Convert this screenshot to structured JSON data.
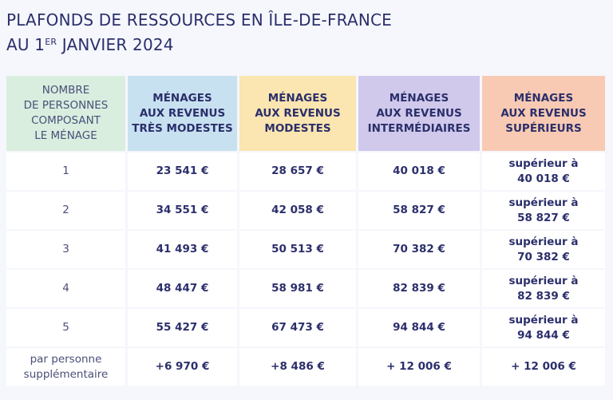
{
  "title": {
    "line1": "PLAFONDS DE RESSOURCES EN ÎLE-DE-FRANCE",
    "line2": {
      "prefix": "AU 1",
      "sup": "ER",
      "suffix": " JANVIER 2024"
    }
  },
  "table": {
    "header": [
      [
        "NOMBRE",
        "DE PERSONNES",
        "COMPOSANT",
        "LE MÉNAGE"
      ],
      [
        "MÉNAGES",
        "AUX REVENUS",
        "TRÈS MODESTES"
      ],
      [
        "MÉNAGES",
        "AUX REVENUS",
        "MODESTES"
      ],
      [
        "MÉNAGES",
        "AUX REVENUS",
        "INTERMÉDIAIRES"
      ],
      [
        "MÉNAGES",
        "AUX REVENUS",
        "SUPÉRIEURS"
      ]
    ],
    "rows": [
      [
        "1",
        "23 541 €",
        "28 657 €",
        "40 018 €",
        [
          "supérieur à",
          "40 018 €"
        ]
      ],
      [
        "2",
        "34 551 €",
        "42 058 €",
        "58 827 €",
        [
          "supérieur à",
          "58 827 €"
        ]
      ],
      [
        "3",
        "41 493 €",
        "50 513 €",
        "70 382 €",
        [
          "supérieur à",
          "70 382 €"
        ]
      ],
      [
        "4",
        "48 447 €",
        "58 981 €",
        "82 839 €",
        [
          "supérieur à",
          "82 839 €"
        ]
      ],
      [
        "5",
        "55 427 €",
        "67 473 €",
        "94 844 €",
        [
          "supérieur à",
          "94 844 €"
        ]
      ],
      [
        [
          "par personne",
          "supplémentaire"
        ],
        "+6 970 €",
        "+8 486 €",
        "+ 12 006 €",
        "+ 12 006 €"
      ]
    ]
  }
}
